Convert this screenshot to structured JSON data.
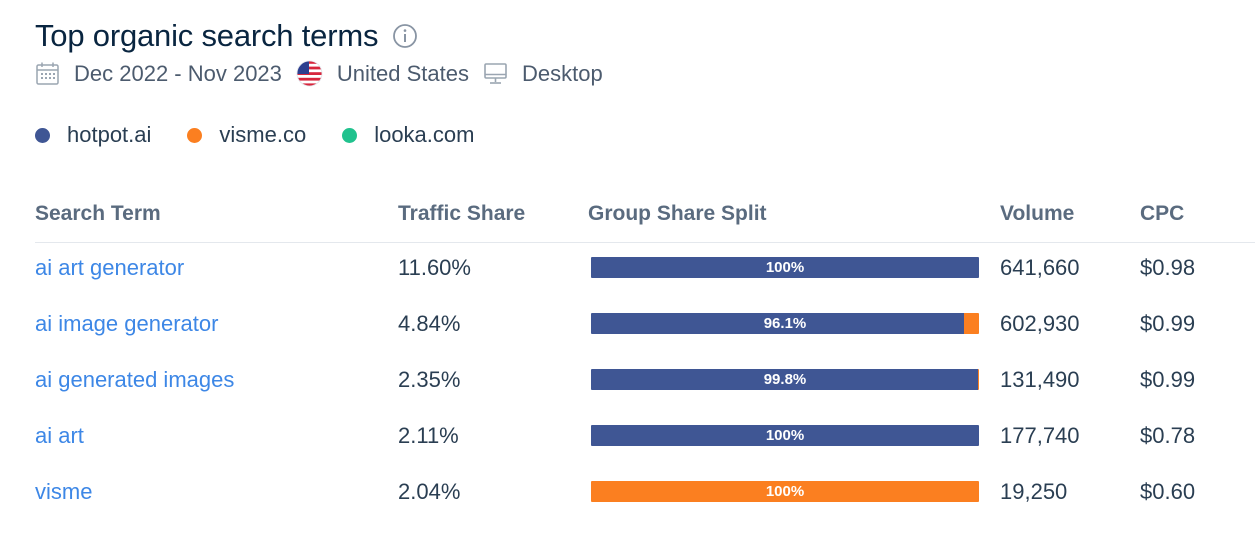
{
  "header": {
    "title": "Top organic search terms",
    "date_range": "Dec 2022 - Nov 2023",
    "country": "United States",
    "device": "Desktop"
  },
  "colors": {
    "hotpot": "#3f5694",
    "visme": "#fb7f20",
    "looka": "#21c28e",
    "link": "#3d87e6"
  },
  "legend": [
    {
      "label": "hotpot.ai",
      "color": "#3f5694"
    },
    {
      "label": "visme.co",
      "color": "#fb7f20"
    },
    {
      "label": "looka.com",
      "color": "#21c28e"
    }
  ],
  "table": {
    "columns": [
      "Search Term",
      "Traffic Share",
      "Group Share Split",
      "Volume",
      "CPC"
    ],
    "rows": [
      {
        "term": "ai art generator",
        "traffic_share": "11.60%",
        "split": [
          100,
          0,
          0
        ],
        "split_label": "100%",
        "volume": "641,660",
        "cpc": "$0.98"
      },
      {
        "term": "ai image generator",
        "traffic_share": "4.84%",
        "split": [
          96.1,
          3.9,
          0
        ],
        "split_label": "96.1%",
        "volume": "602,930",
        "cpc": "$0.99"
      },
      {
        "term": "ai generated images",
        "traffic_share": "2.35%",
        "split": [
          99.8,
          0.2,
          0
        ],
        "split_label": "99.8%",
        "volume": "131,490",
        "cpc": "$0.99"
      },
      {
        "term": "ai art",
        "traffic_share": "2.11%",
        "split": [
          100,
          0,
          0
        ],
        "split_label": "100%",
        "volume": "177,740",
        "cpc": "$0.78"
      },
      {
        "term": "visme",
        "traffic_share": "2.04%",
        "split": [
          0,
          100,
          0
        ],
        "split_label": "100%",
        "volume": "19,250",
        "cpc": "$0.60"
      }
    ]
  }
}
